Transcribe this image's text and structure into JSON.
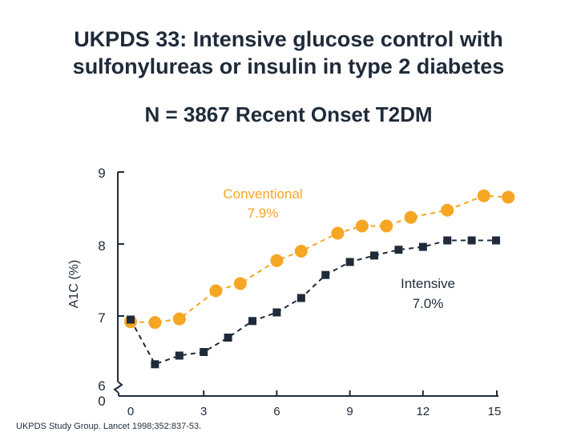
{
  "title_line1": "UKPDS 33: Intensive glucose control with",
  "title_line2": "sulfonylureas or insulin in type 2 diabetes",
  "subtitle": "N = 3867 Recent Onset T2DM",
  "citation": "UKPDS Study Group. Lancet 1998;352:837-53.",
  "chart_data": {
    "type": "line",
    "ylabel": "A1C (%)",
    "xlabel": "",
    "x_ticks": [
      "0",
      "3",
      "6",
      "9",
      "12",
      "15"
    ],
    "y_ticks": [
      "9",
      "8",
      "7",
      "6",
      "0"
    ],
    "y_axis_break": true,
    "ylim": [
      6,
      9
    ],
    "xlim": [
      0,
      15.5
    ],
    "series": [
      {
        "name": "Conventional",
        "label_line1": "Conventional",
        "label_line2": "7.9%",
        "color": "#f5a623",
        "marker": "circle",
        "x": [
          0,
          1,
          2,
          3.5,
          4.5,
          6,
          7,
          8.5,
          9.5,
          10.5,
          11.5,
          13,
          14.5,
          15.5
        ],
        "values": [
          6.92,
          6.91,
          6.96,
          7.35,
          7.45,
          7.77,
          7.9,
          8.15,
          8.25,
          8.25,
          8.37,
          8.47,
          8.67,
          8.65
        ]
      },
      {
        "name": "Intensive",
        "label_line1": "Intensive",
        "label_line2": "7.0%",
        "color": "#1f2b3a",
        "marker": "square",
        "x": [
          0,
          1,
          2,
          3,
          4,
          5,
          6,
          7,
          8,
          9,
          10,
          11,
          12,
          13,
          14,
          15
        ],
        "values": [
          6.95,
          6.33,
          6.45,
          6.5,
          6.7,
          6.93,
          7.05,
          7.25,
          7.57,
          7.75,
          7.84,
          7.92,
          7.96,
          8.05,
          8.05,
          8.05
        ]
      }
    ]
  }
}
